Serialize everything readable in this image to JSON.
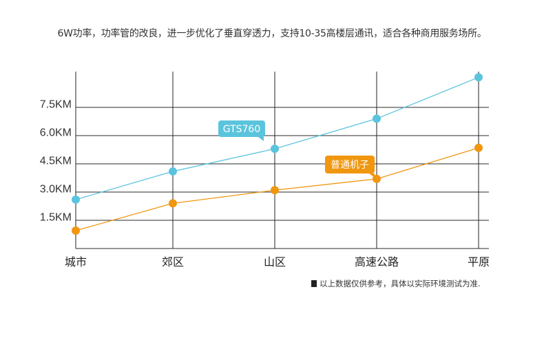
{
  "headline": "6W功率，功率管的改良，进一步优化了垂直穿透力，支持10-35高楼层通讯，适合各种商用服务场所。",
  "note": "以上数据仅供参考，具体以实际环境测试为准.",
  "chart_data": {
    "type": "line",
    "title": "",
    "xlabel": "",
    "ylabel": "",
    "categories": [
      "城市",
      "郊区",
      "山区",
      "高速公路",
      "平原"
    ],
    "y_ticks": [
      1.5,
      3.0,
      4.5,
      6.0,
      7.5
    ],
    "y_tick_labels": [
      "1.5KM",
      "3.0KM",
      "4.5KM",
      "6.0KM",
      "7.5KM"
    ],
    "ylim": [
      0,
      9.3
    ],
    "grid": true,
    "series": [
      {
        "name": "GTS760",
        "color": "#5bc4dd",
        "values": [
          2.6,
          4.1,
          5.3,
          6.9,
          9.1
        ]
      },
      {
        "name": "普通机子",
        "color": "#f0960f",
        "values": [
          0.95,
          2.4,
          3.1,
          3.7,
          5.35
        ]
      }
    ]
  }
}
